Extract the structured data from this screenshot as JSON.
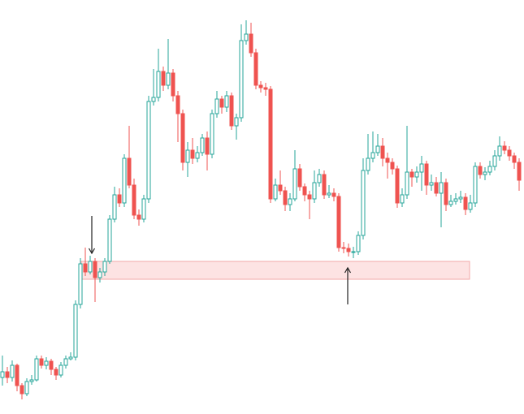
{
  "chart_data": {
    "type": "candlestick",
    "up_color": "#26a69a",
    "down_color": "#ef5350",
    "ylim": [
      0,
      510
    ],
    "open": [
      45,
      52,
      45,
      60,
      35,
      25,
      40,
      42,
      68,
      60,
      65,
      55,
      48,
      60,
      68,
      70,
      135,
      185,
      175,
      188,
      168,
      175,
      188,
      240,
      270,
      260,
      315,
      282,
      245,
      240,
      265,
      385,
      390,
      422,
      405,
      420,
      392,
      370,
      310,
      325,
      315,
      322,
      340,
      320,
      370,
      388,
      378,
      392,
      355,
      365,
      460,
      468,
      445,
      405,
      402,
      400,
      265,
      282,
      275,
      258,
      265,
      302,
      280,
      270,
      265,
      285,
      295,
      270,
      272,
      268,
      205,
      204,
      200,
      200,
      220,
      300,
      315,
      322,
      330,
      315,
      310,
      302,
      260,
      270,
      298,
      292,
      298,
      308,
      282,
      285,
      272,
      285,
      258,
      262,
      265,
      267,
      252,
      260,
      305,
      295,
      298,
      305,
      318,
      330,
      325,
      318,
      310
    ],
    "high": [
      72,
      58,
      66,
      62,
      38,
      44,
      48,
      72,
      72,
      70,
      68,
      58,
      64,
      72,
      76,
      140,
      192,
      205,
      195,
      192,
      180,
      192,
      245,
      280,
      278,
      320,
      355,
      290,
      252,
      270,
      392,
      425,
      450,
      428,
      462,
      425,
      398,
      375,
      335,
      340,
      330,
      345,
      348,
      375,
      398,
      392,
      398,
      396,
      370,
      480,
      485,
      482,
      450,
      410,
      408,
      404,
      290,
      300,
      280,
      272,
      325,
      308,
      284,
      275,
      300,
      302,
      300,
      282,
      278,
      272,
      212,
      210,
      206,
      225,
      315,
      345,
      348,
      345,
      340,
      322,
      315,
      306,
      278,
      355,
      302,
      305,
      318,
      312,
      295,
      292,
      298,
      290,
      270,
      272,
      275,
      272,
      270,
      310,
      310,
      304,
      312,
      325,
      342,
      336,
      330,
      322,
      315
    ],
    "low": [
      35,
      38,
      40,
      28,
      18,
      22,
      36,
      40,
      56,
      55,
      48,
      42,
      45,
      56,
      66,
      66,
      130,
      170,
      172,
      138,
      162,
      170,
      185,
      236,
      255,
      255,
      278,
      240,
      232,
      236,
      260,
      380,
      385,
      398,
      400,
      385,
      335,
      300,
      292,
      308,
      310,
      318,
      300,
      315,
      365,
      370,
      372,
      350,
      338,
      360,
      455,
      440,
      400,
      396,
      392,
      260,
      262,
      270,
      250,
      250,
      262,
      275,
      262,
      240,
      260,
      280,
      265,
      266,
      262,
      200,
      198,
      194,
      192,
      196,
      215,
      295,
      310,
      318,
      305,
      290,
      295,
      254,
      255,
      265,
      280,
      285,
      275,
      270,
      275,
      268,
      230,
      250,
      255,
      258,
      260,
      245,
      248,
      255,
      290,
      288,
      294,
      300,
      312,
      320,
      312,
      302,
      275
    ],
    "close": [
      52,
      45,
      60,
      35,
      25,
      40,
      42,
      68,
      60,
      65,
      55,
      48,
      60,
      68,
      70,
      135,
      185,
      175,
      188,
      168,
      175,
      188,
      240,
      270,
      260,
      315,
      282,
      245,
      240,
      265,
      385,
      390,
      422,
      405,
      420,
      392,
      370,
      310,
      325,
      315,
      322,
      340,
      320,
      370,
      388,
      378,
      392,
      355,
      365,
      460,
      468,
      445,
      405,
      402,
      400,
      265,
      282,
      275,
      258,
      265,
      302,
      280,
      270,
      265,
      285,
      295,
      270,
      272,
      268,
      205,
      204,
      200,
      200,
      220,
      300,
      315,
      322,
      330,
      315,
      310,
      302,
      260,
      270,
      298,
      292,
      298,
      308,
      282,
      285,
      272,
      285,
      258,
      262,
      265,
      267,
      252,
      260,
      305,
      295,
      298,
      305,
      318,
      330,
      325,
      318,
      310,
      288
    ]
  }
}
